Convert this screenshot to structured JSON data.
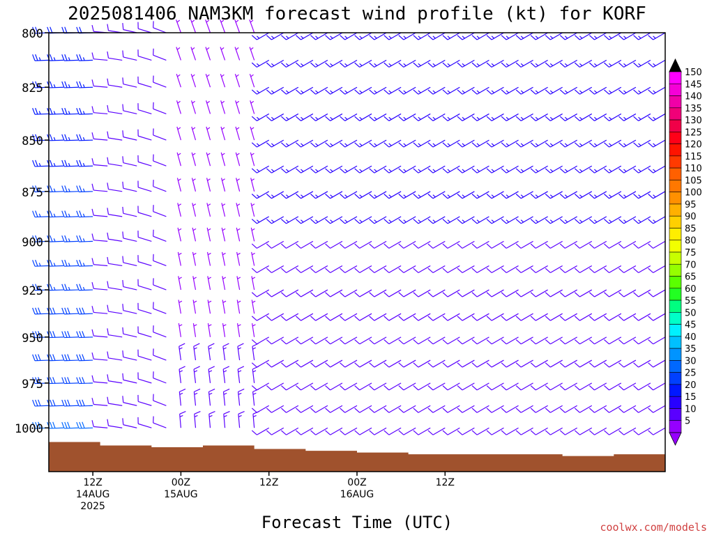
{
  "chart_data": {
    "type": "wind-barb-time-height",
    "title": "2025081406 NAM3KM forecast wind profile (kt) for KORF",
    "xlabel": "Forecast Time (UTC)",
    "ylabel": "",
    "y_units": "hPa",
    "yscale": "log-pressure",
    "y_ticks": [
      "800",
      "825",
      "850",
      "875",
      "900",
      "925",
      "950",
      "975",
      "1000"
    ],
    "y_tick_values": [
      800,
      825,
      850,
      875,
      900,
      925,
      950,
      975,
      1000
    ],
    "ylim": [
      1025,
      800
    ],
    "xlim": [
      "2025-08-14 06Z",
      "2025-08-16 21Z"
    ],
    "x_ticks": [
      {
        "label": "12Z",
        "date": "14AUG",
        "year": "2025",
        "time": "2025-08-14 12Z"
      },
      {
        "label": "00Z",
        "date": "15AUG",
        "year": "",
        "time": "2025-08-15 00Z"
      },
      {
        "label": "12Z",
        "date": "",
        "year": "",
        "time": "2025-08-15 12Z"
      },
      {
        "label": "00Z",
        "date": "16AUG",
        "year": "",
        "time": "2025-08-16 00Z"
      },
      {
        "label": "12Z",
        "date": "",
        "year": "",
        "time": "2025-08-16 12Z"
      }
    ],
    "x_forecast_hours": [
      6,
      8,
      10,
      12,
      14,
      16,
      18,
      20,
      22,
      24,
      26,
      28,
      30,
      32,
      34,
      36,
      38,
      40,
      42,
      44,
      46,
      48,
      50,
      52,
      54,
      56,
      58,
      60,
      62,
      64,
      66,
      68,
      70,
      72,
      74,
      76,
      78,
      80,
      82,
      84,
      86,
      88,
      90
    ],
    "pressure_levels": [
      800,
      812.5,
      825,
      837.5,
      850,
      862.5,
      875,
      887.5,
      900,
      912.5,
      925,
      937.5,
      950,
      962.5,
      975,
      987.5,
      1000
    ],
    "wind_regimes": [
      {
        "period": "2025-08-14 06Z to 14Z",
        "direction_deg": 270,
        "speed_kt": "20-35",
        "color_band": "blue"
      },
      {
        "period": "2025-08-14 14Z to 2025-08-15 00Z",
        "direction_deg": "260-300",
        "speed_kt": "10-15",
        "color_band": "violet"
      },
      {
        "period": "2025-08-15 00Z to 12Z",
        "direction_deg": "330-360",
        "speed_kt": "5-15",
        "color_band": "violet/blue"
      },
      {
        "period": "2025-08-15 12Z to 2025-08-16 21Z",
        "direction_deg": "230-250",
        "speed_kt": "10-25",
        "color_band": "blue/violet"
      }
    ],
    "terrain": {
      "color": "#a0522d",
      "surface_pressure_hPa": [
        1008,
        1010,
        1011,
        1010,
        1012,
        1013,
        1014,
        1015,
        1015,
        1015,
        1016,
        1015
      ]
    },
    "colorbar": {
      "labels": [
        "150",
        "145",
        "140",
        "135",
        "130",
        "125",
        "120",
        "115",
        "110",
        "105",
        "100",
        "95",
        "90",
        "85",
        "80",
        "75",
        "70",
        "65",
        "60",
        "55",
        "50",
        "45",
        "40",
        "35",
        "30",
        "25",
        "20",
        "15",
        "10",
        "5"
      ],
      "colors": [
        "#ff00ff",
        "#f500d8",
        "#f000a8",
        "#f00078",
        "#f00048",
        "#ff0018",
        "#ff1400",
        "#ff3a00",
        "#ff6000",
        "#ff7800",
        "#ff9000",
        "#ffb000",
        "#ffd000",
        "#ffee00",
        "#f2ff00",
        "#c8ff00",
        "#96ff00",
        "#5aff00",
        "#22ff22",
        "#00ff80",
        "#00ffc8",
        "#00f0ff",
        "#00c0ff",
        "#0094ff",
        "#0068ff",
        "#0040ff",
        "#0018ff",
        "#2800ff",
        "#5a00ff",
        "#9600ff"
      ]
    }
  },
  "credit": "coolwx.com/models"
}
